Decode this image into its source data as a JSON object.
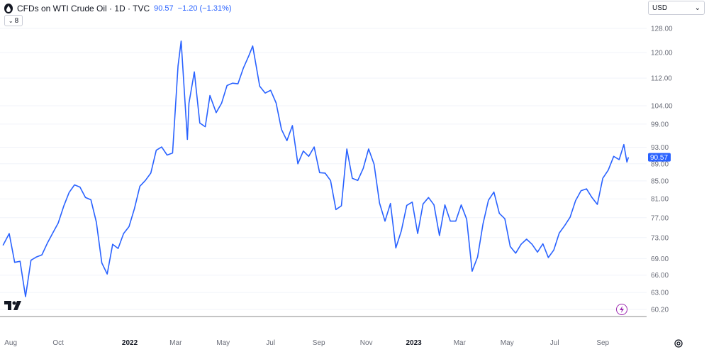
{
  "header": {
    "title": "CFDs on WTI Crude Oil · 1D · TVC",
    "price": "90.57",
    "change": "−1.20 (−1.31%)"
  },
  "collapse_label": "8",
  "currency": {
    "label": "USD",
    "icon": "chevron-down-icon"
  },
  "colors": {
    "line": "#2962ff",
    "accent": "#2962ff",
    "axis": "#888888",
    "lightning": "#9c27b0"
  },
  "chart_data": {
    "type": "line",
    "title": "CFDs on WTI Crude Oil · 1D · TVC",
    "xlabel": "",
    "ylabel": "",
    "ylim": [
      60.2,
      128
    ],
    "yaxis_scale": "log",
    "y_ticks": [
      "128.00",
      "120.00",
      "112.00",
      "104.00",
      "99.00",
      "93.00",
      "89.00",
      "85.00",
      "81.00",
      "77.00",
      "73.00",
      "69.00",
      "66.00",
      "63.00",
      "60.20"
    ],
    "x_ticks": [
      {
        "label": "Aug",
        "date": "2021-08-01",
        "major": false
      },
      {
        "label": "Oct",
        "date": "2021-10-01",
        "major": false
      },
      {
        "label": "2022",
        "date": "2022-01-01",
        "major": true
      },
      {
        "label": "Mar",
        "date": "2022-03-01",
        "major": false
      },
      {
        "label": "May",
        "date": "2022-05-01",
        "major": false
      },
      {
        "label": "Jul",
        "date": "2022-07-01",
        "major": false
      },
      {
        "label": "Sep",
        "date": "2022-09-01",
        "major": false
      },
      {
        "label": "Nov",
        "date": "2022-11-01",
        "major": false
      },
      {
        "label": "2023",
        "date": "2023-01-01",
        "major": true
      },
      {
        "label": "Mar",
        "date": "2023-03-01",
        "major": false
      },
      {
        "label": "May",
        "date": "2023-05-01",
        "major": false
      },
      {
        "label": "Jul",
        "date": "2023-07-01",
        "major": false
      },
      {
        "label": "Sep",
        "date": "2023-09-01",
        "major": false
      }
    ],
    "last_price": 90.57,
    "series": [
      {
        "points": [
          [
            "2021-07-22",
            71.5
          ],
          [
            "2021-07-30",
            73.8
          ],
          [
            "2021-08-06",
            68.3
          ],
          [
            "2021-08-13",
            68.5
          ],
          [
            "2021-08-20",
            62.3
          ],
          [
            "2021-08-27",
            68.7
          ],
          [
            "2021-09-03",
            69.3
          ],
          [
            "2021-09-10",
            69.7
          ],
          [
            "2021-09-17",
            71.9
          ],
          [
            "2021-09-24",
            73.9
          ],
          [
            "2021-10-01",
            75.9
          ],
          [
            "2021-10-08",
            79.4
          ],
          [
            "2021-10-15",
            82.4
          ],
          [
            "2021-10-22",
            84.1
          ],
          [
            "2021-10-29",
            83.6
          ],
          [
            "2021-11-05",
            81.3
          ],
          [
            "2021-11-12",
            80.8
          ],
          [
            "2021-11-19",
            76.1
          ],
          [
            "2021-11-26",
            68.2
          ],
          [
            "2021-12-03",
            66.2
          ],
          [
            "2021-12-10",
            71.7
          ],
          [
            "2021-12-17",
            70.9
          ],
          [
            "2021-12-24",
            73.8
          ],
          [
            "2021-12-31",
            75.2
          ],
          [
            "2022-01-07",
            78.9
          ],
          [
            "2022-01-14",
            83.8
          ],
          [
            "2022-01-21",
            85.1
          ],
          [
            "2022-01-28",
            86.8
          ],
          [
            "2022-02-04",
            92.3
          ],
          [
            "2022-02-11",
            93.1
          ],
          [
            "2022-02-18",
            91.1
          ],
          [
            "2022-02-25",
            91.6
          ],
          [
            "2022-03-04",
            115.7
          ],
          [
            "2022-03-08",
            123.7
          ],
          [
            "2022-03-16",
            95.0
          ],
          [
            "2022-03-18",
            104.7
          ],
          [
            "2022-03-25",
            113.9
          ],
          [
            "2022-04-01",
            99.3
          ],
          [
            "2022-04-08",
            98.3
          ],
          [
            "2022-04-14",
            106.9
          ],
          [
            "2022-04-22",
            102.1
          ],
          [
            "2022-04-29",
            104.7
          ],
          [
            "2022-05-06",
            109.8
          ],
          [
            "2022-05-13",
            110.5
          ],
          [
            "2022-05-20",
            110.3
          ],
          [
            "2022-05-27",
            115.1
          ],
          [
            "2022-06-03",
            118.9
          ],
          [
            "2022-06-08",
            122.1
          ],
          [
            "2022-06-17",
            109.6
          ],
          [
            "2022-06-24",
            107.6
          ],
          [
            "2022-07-01",
            108.4
          ],
          [
            "2022-07-08",
            104.8
          ],
          [
            "2022-07-15",
            97.6
          ],
          [
            "2022-07-22",
            94.7
          ],
          [
            "2022-07-29",
            98.6
          ],
          [
            "2022-08-05",
            89.0
          ],
          [
            "2022-08-12",
            92.1
          ],
          [
            "2022-08-19",
            90.8
          ],
          [
            "2022-08-26",
            93.1
          ],
          [
            "2022-09-02",
            86.9
          ],
          [
            "2022-09-09",
            86.8
          ],
          [
            "2022-09-16",
            85.1
          ],
          [
            "2022-09-23",
            78.7
          ],
          [
            "2022-09-30",
            79.5
          ],
          [
            "2022-10-07",
            92.6
          ],
          [
            "2022-10-14",
            85.6
          ],
          [
            "2022-10-21",
            85.1
          ],
          [
            "2022-10-28",
            87.9
          ],
          [
            "2022-11-04",
            92.6
          ],
          [
            "2022-11-11",
            88.9
          ],
          [
            "2022-11-18",
            80.1
          ],
          [
            "2022-11-25",
            76.3
          ],
          [
            "2022-12-02",
            80.0
          ],
          [
            "2022-12-09",
            71.0
          ],
          [
            "2022-12-16",
            74.3
          ],
          [
            "2022-12-23",
            79.6
          ],
          [
            "2022-12-30",
            80.3
          ],
          [
            "2023-01-06",
            73.8
          ],
          [
            "2023-01-13",
            79.9
          ],
          [
            "2023-01-20",
            81.3
          ],
          [
            "2023-01-27",
            79.7
          ],
          [
            "2023-02-03",
            73.4
          ],
          [
            "2023-02-10",
            79.7
          ],
          [
            "2023-02-17",
            76.3
          ],
          [
            "2023-02-24",
            76.3
          ],
          [
            "2023-03-03",
            79.7
          ],
          [
            "2023-03-10",
            76.7
          ],
          [
            "2023-03-17",
            66.7
          ],
          [
            "2023-03-24",
            69.3
          ],
          [
            "2023-03-31",
            75.7
          ],
          [
            "2023-04-07",
            80.7
          ],
          [
            "2023-04-14",
            82.5
          ],
          [
            "2023-04-21",
            77.9
          ],
          [
            "2023-04-28",
            76.8
          ],
          [
            "2023-05-05",
            71.3
          ],
          [
            "2023-05-12",
            70.0
          ],
          [
            "2023-05-19",
            71.7
          ],
          [
            "2023-05-26",
            72.7
          ],
          [
            "2023-06-02",
            71.7
          ],
          [
            "2023-06-09",
            70.2
          ],
          [
            "2023-06-16",
            71.8
          ],
          [
            "2023-06-23",
            69.2
          ],
          [
            "2023-06-30",
            70.6
          ],
          [
            "2023-07-07",
            73.9
          ],
          [
            "2023-07-14",
            75.4
          ],
          [
            "2023-07-21",
            77.1
          ],
          [
            "2023-07-28",
            80.6
          ],
          [
            "2023-08-04",
            82.8
          ],
          [
            "2023-08-11",
            83.2
          ],
          [
            "2023-08-18",
            81.3
          ],
          [
            "2023-08-25",
            79.8
          ],
          [
            "2023-09-01",
            85.6
          ],
          [
            "2023-09-08",
            87.5
          ],
          [
            "2023-09-15",
            90.8
          ],
          [
            "2023-09-22",
            90.0
          ],
          [
            "2023-09-28",
            93.7
          ],
          [
            "2023-10-02",
            89.4
          ],
          [
            "2023-10-04",
            90.57
          ]
        ]
      }
    ]
  }
}
